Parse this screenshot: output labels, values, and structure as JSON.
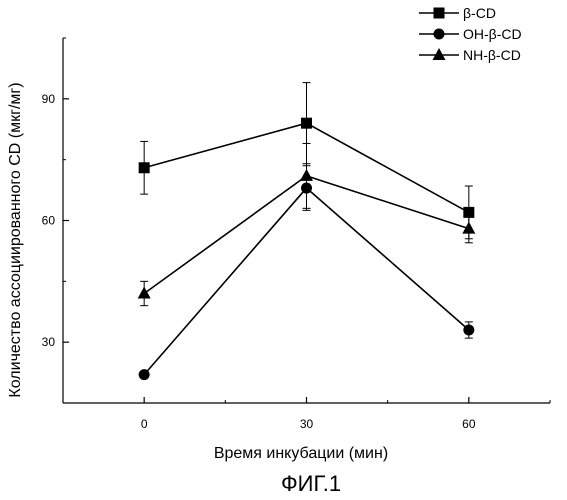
{
  "chart_data": {
    "type": "line",
    "x": [
      0,
      30,
      60
    ],
    "x_ticks": [
      "0",
      "30",
      "60"
    ],
    "y_ticks": [
      "30",
      "60",
      "90"
    ],
    "xlabel": "Время инкубации (мин)",
    "ylabel": "Количество ассоциированного CD (мкг/мг)",
    "xlim": [
      -15,
      75
    ],
    "ylim": [
      15,
      105
    ],
    "grid": false,
    "legend_position": "top-right",
    "series": [
      {
        "name": "β-CD",
        "marker": "square",
        "values": [
          73,
          84,
          62
        ],
        "errors": [
          6.5,
          10,
          6.5
        ]
      },
      {
        "name": "OH-β-CD",
        "marker": "circle",
        "values": [
          22,
          68,
          33
        ],
        "errors": [
          0,
          5.5,
          2
        ]
      },
      {
        "name": "NH-β-CD",
        "marker": "triangle",
        "values": [
          42,
          71,
          58
        ],
        "errors": [
          3,
          8,
          3.5
        ]
      }
    ]
  },
  "figure_caption": "ФИГ.1"
}
